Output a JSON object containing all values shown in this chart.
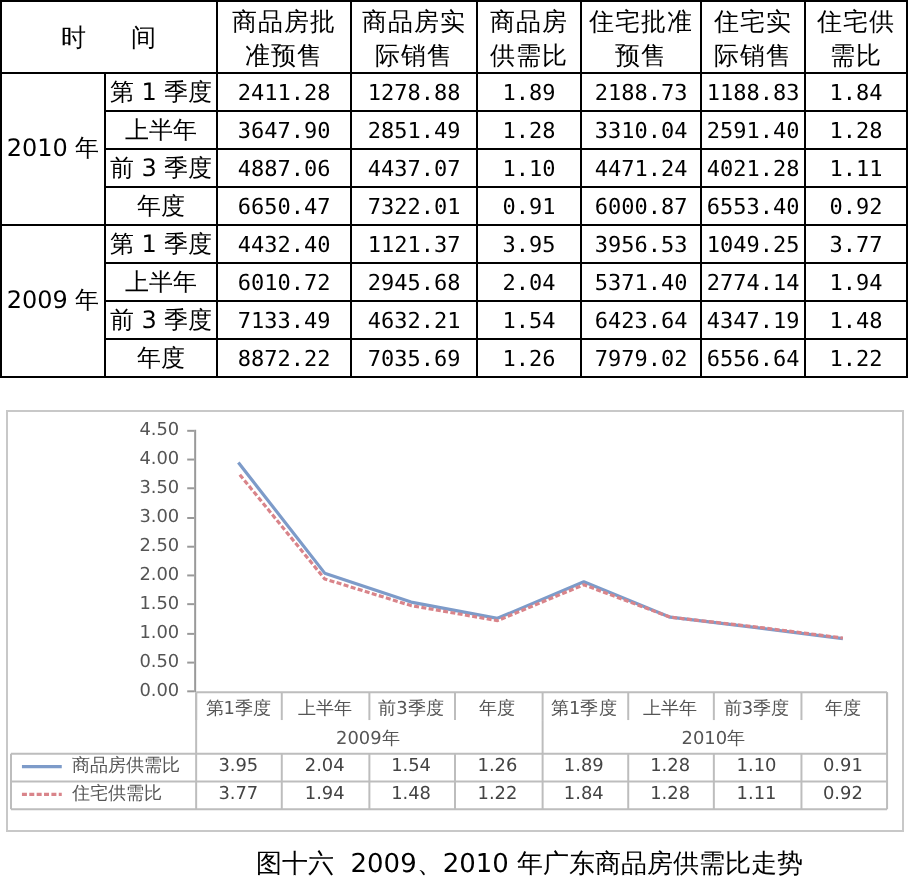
{
  "chart_data": [
    {
      "type": "other",
      "ylabel": "时 间",
      "categories": [
        "商品房批准预售",
        "商品房实际销售",
        "商品房供需比",
        "住宅批准预售",
        "住宅实际销售",
        "住宅供需比"
      ],
      "y_categories": [
        "第 1 季度",
        "上半年",
        "前 3 季度",
        "年度",
        "第 1 季度",
        "上半年",
        "前 3 季度",
        "年度"
      ],
      "annotations": [
        "2010 年",
        "2009 年"
      ],
      "cell_labels": [
        [
          "2411.28",
          "1278.88",
          "1.89",
          "2188.73",
          "1188.83",
          "1.84"
        ],
        [
          "3647.90",
          "2851.49",
          "1.28",
          "3310.04",
          "2591.40",
          "1.28"
        ],
        [
          "4887.06",
          "4437.07",
          "1.10",
          "4471.24",
          "4021.28",
          "1.11"
        ],
        [
          "6650.47",
          "7322.01",
          "0.91",
          "6000.87",
          "6553.40",
          "0.92"
        ],
        [
          "4432.40",
          "1121.37",
          "3.95",
          "3956.53",
          "1049.25",
          "3.77"
        ],
        [
          "6010.72",
          "2945.68",
          "2.04",
          "5371.40",
          "2774.14",
          "1.94"
        ],
        [
          "7133.49",
          "4632.21",
          "1.54",
          "6423.64",
          "4347.19",
          "1.48"
        ],
        [
          "8872.22",
          "7035.69",
          "1.26",
          "7979.02",
          "6556.64",
          "1.22"
        ]
      ]
    },
    {
      "type": "line",
      "title": "图十六  2009、2010 年广东商品房供需比走势",
      "categories": [
        "第1季度",
        "上半年",
        "前3季度",
        "年度",
        "第1季度",
        "上半年",
        "前3季度",
        "年度"
      ],
      "annotations": [
        "2009年",
        "2010年"
      ],
      "series": [
        {
          "name": "商品房供需比",
          "color": "#7d9bc9",
          "line_style": "solid",
          "values": [
            3.95,
            2.04,
            1.54,
            1.26,
            1.89,
            1.28,
            1.1,
            0.91
          ],
          "value_labels": [
            "3.95",
            "2.04",
            "1.54",
            "1.26",
            "1.89",
            "1.28",
            "1.10",
            "0.91"
          ]
        },
        {
          "name": "住宅供需比",
          "color": "#d9848a",
          "line_style": "dotted",
          "values": [
            3.77,
            1.94,
            1.48,
            1.22,
            1.84,
            1.28,
            1.11,
            0.92
          ],
          "value_labels": [
            "3.77",
            "1.94",
            "1.48",
            "1.22",
            "1.84",
            "1.28",
            "1.11",
            "0.92"
          ]
        }
      ],
      "ylim": [
        0,
        4.5
      ],
      "yticks": [
        {
          "value": 0,
          "label": "0.00"
        },
        {
          "value": 0.5,
          "label": "0.50"
        },
        {
          "value": 1,
          "label": "1.00"
        },
        {
          "value": 1.5,
          "label": "1.50"
        },
        {
          "value": 2,
          "label": "2.00"
        },
        {
          "value": 2.5,
          "label": "2.50"
        },
        {
          "value": 3,
          "label": "3.00"
        },
        {
          "value": 3.5,
          "label": "3.50"
        },
        {
          "value": 4,
          "label": "4.00"
        },
        {
          "value": 4.5,
          "label": "4.50"
        }
      ],
      "legend": "bottom",
      "marker": "none"
    }
  ]
}
